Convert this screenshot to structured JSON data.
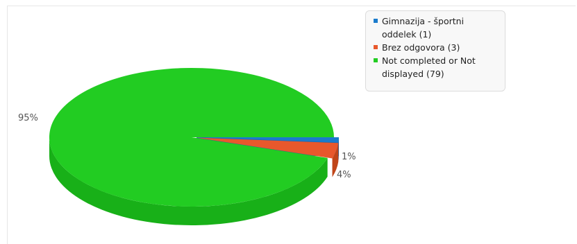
{
  "chart_data": {
    "type": "pie",
    "title": "",
    "slices": [
      {
        "label": "Gimnazija - športni oddelek",
        "count": 1,
        "percent_label": "1%",
        "color": "#1a7bcc",
        "side_color": "#1563a6"
      },
      {
        "label": "Brez odgovora",
        "count": 3,
        "percent_label": "4%",
        "color": "#e8582c",
        "side_color": "#c04519"
      },
      {
        "label": "Not completed or Not displayed",
        "count": 79,
        "percent_label": "95%",
        "color": "#22cc22",
        "side_color": "#18b018"
      }
    ],
    "legend": {
      "placement": "top-right",
      "items": [
        {
          "text": "Gimnazija - športni oddelek (1)",
          "color": "#1a7bcc"
        },
        {
          "text": "Brez odgovora (3)",
          "color": "#e8582c"
        },
        {
          "text": "Not completed or Not displayed (79)",
          "color": "#22cc22"
        }
      ]
    }
  }
}
